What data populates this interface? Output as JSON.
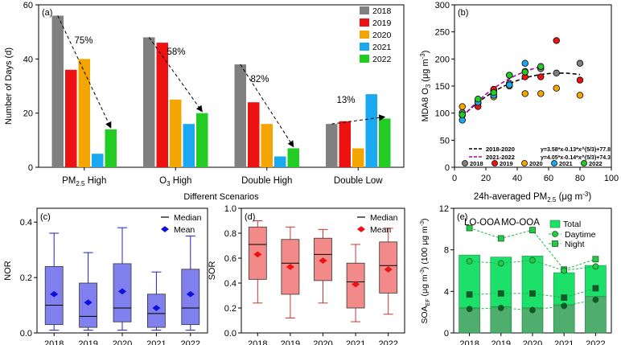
{
  "chart_data": [
    {
      "panel": "(a)",
      "type": "bar",
      "categories": [
        "PM2.5 High",
        "O3 High",
        "Double High",
        "Double Low"
      ],
      "category_labels": [
        {
          "main": "PM",
          "sub": "2.5",
          "rest": " High"
        },
        {
          "main": "O",
          "sub": "3",
          "rest": " High"
        },
        {
          "main": "Double High",
          "sub": "",
          "rest": ""
        },
        {
          "main": "Double Low",
          "sub": "",
          "rest": ""
        }
      ],
      "series": [
        {
          "name": "2018",
          "color": "#808080",
          "values": [
            56,
            48,
            38,
            16
          ]
        },
        {
          "name": "2019",
          "color": "#ee1111",
          "values": [
            36,
            46,
            24,
            17
          ]
        },
        {
          "name": "2020",
          "color": "#f5a500",
          "values": [
            40,
            25,
            16,
            7
          ]
        },
        {
          "name": "2021",
          "color": "#1aa9f0",
          "values": [
            5,
            16,
            4,
            27
          ]
        },
        {
          "name": "2022",
          "color": "#22cc22",
          "values": [
            14,
            20,
            7,
            18
          ]
        }
      ],
      "annotations": [
        "75%",
        "58%",
        "82%",
        "13%"
      ],
      "xlabel": "Different Scenarios",
      "ylabel": "Number of Days (d)",
      "ylim": [
        0,
        60
      ],
      "yticks": [
        0,
        20,
        40,
        60
      ],
      "legend": "top-right"
    },
    {
      "panel": "(b)",
      "type": "scatter",
      "xlabel_main": "24h-averaged PM",
      "xlabel_sub": "2.5",
      "xlabel_unit": " (μg m",
      "xlabel_sup": "-3",
      "xlabel_end": ")",
      "ylabel_main": "MDA8 O",
      "ylabel_sub": "3",
      "ylabel_unit": " (μg m",
      "ylabel_sup": "-3",
      "ylabel_end": ")",
      "xlim": [
        0,
        100
      ],
      "ylim": [
        0,
        300
      ],
      "xticks": [
        0,
        20,
        40,
        60,
        80,
        100
      ],
      "yticks": [
        0,
        50,
        100,
        150,
        200,
        250,
        300
      ],
      "series": [
        {
          "name": "2018",
          "color": "#808080",
          "points": [
            [
              5,
              101
            ],
            [
              15,
              118
            ],
            [
              25,
              141
            ],
            [
              35,
              155
            ],
            [
              45,
              177
            ],
            [
              55,
              182
            ],
            [
              65,
              174
            ],
            [
              80,
              192
            ]
          ]
        },
        {
          "name": "2019",
          "color": "#ee1111",
          "points": [
            [
              5,
              96
            ],
            [
              15,
              112
            ],
            [
              25,
              144
            ],
            [
              35,
              170
            ],
            [
              45,
              167
            ],
            [
              55,
              167
            ],
            [
              65,
              234
            ],
            [
              80,
              161
            ]
          ]
        },
        {
          "name": "2020",
          "color": "#f5a500",
          "points": [
            [
              5,
              112
            ],
            [
              15,
              123
            ],
            [
              25,
              130
            ],
            [
              35,
              150
            ],
            [
              45,
              136
            ],
            [
              55,
              136
            ],
            [
              65,
              146
            ],
            [
              80,
              133
            ]
          ]
        },
        {
          "name": "2021",
          "color": "#1aa9f0",
          "points": [
            [
              5,
              87
            ],
            [
              15,
              120
            ],
            [
              25,
              133
            ],
            [
              35,
              152
            ],
            [
              45,
              192
            ]
          ]
        },
        {
          "name": "2022",
          "color": "#22cc22",
          "points": [
            [
              5,
              97
            ],
            [
              15,
              126
            ],
            [
              25,
              138
            ],
            [
              35,
              170
            ],
            [
              45,
              176
            ],
            [
              55,
              186
            ]
          ]
        }
      ],
      "fits": [
        {
          "name": "2018-2020",
          "equation": "y=3.58*x-0.13*x^(5/3)+77.8",
          "color": "#000000",
          "a": 3.58,
          "b": 0.13,
          "c": 77.8,
          "range": [
            5,
            80
          ]
        },
        {
          "name": "2021-2022",
          "equation": "y=4.05*x-0.14*x^(5/3)+74.3",
          "color": "#b000b0",
          "a": 4.05,
          "b": 0.14,
          "c": 74.3,
          "range": [
            5,
            55
          ]
        }
      ]
    },
    {
      "panel": "(c)",
      "type": "box",
      "categories": [
        "2018",
        "2019",
        "2020",
        "2021",
        "2022"
      ],
      "ylabel": "NOR",
      "ylim": [
        0,
        0.45
      ],
      "yticks": [
        "0.0",
        "0.2",
        "0.4"
      ],
      "ytick_values": [
        0,
        0.2,
        0.4
      ],
      "fill": "#8080ee",
      "stroke": "#2020cc",
      "mean_color": "#1010dd",
      "legend": [
        "Median",
        "Mean"
      ],
      "boxes": [
        {
          "min": 0.01,
          "q1": 0.03,
          "median": 0.1,
          "q3": 0.24,
          "max": 0.36,
          "mean": 0.14
        },
        {
          "min": 0.01,
          "q1": 0.02,
          "median": 0.06,
          "q3": 0.18,
          "max": 0.29,
          "mean": 0.11
        },
        {
          "min": 0.01,
          "q1": 0.04,
          "median": 0.09,
          "q3": 0.25,
          "max": 0.38,
          "mean": 0.15
        },
        {
          "min": 0.01,
          "q1": 0.02,
          "median": 0.07,
          "q3": 0.14,
          "max": 0.22,
          "mean": 0.09
        },
        {
          "min": 0.01,
          "q1": 0.03,
          "median": 0.09,
          "q3": 0.23,
          "max": 0.35,
          "mean": 0.14
        }
      ]
    },
    {
      "panel": "(d)",
      "type": "box",
      "categories": [
        "2018",
        "2019",
        "2020",
        "2021",
        "2022"
      ],
      "ylabel": "SOR",
      "ylim": [
        0,
        1.0
      ],
      "yticks": [
        "0.0",
        "0.2",
        "0.4",
        "0.6",
        "0.8",
        "1.0"
      ],
      "ytick_values": [
        0,
        0.2,
        0.4,
        0.6,
        0.8,
        1.0
      ],
      "fill": "#f28a8a",
      "stroke": "#cc3333",
      "mean_color": "#ee1111",
      "legend": [
        "Median",
        "Mean"
      ],
      "boxes": [
        {
          "min": 0.24,
          "q1": 0.43,
          "median": 0.71,
          "q3": 0.85,
          "max": 0.9,
          "mean": 0.63
        },
        {
          "min": 0.12,
          "q1": 0.31,
          "median": 0.56,
          "q3": 0.75,
          "max": 0.85,
          "mean": 0.53
        },
        {
          "min": 0.24,
          "q1": 0.42,
          "median": 0.63,
          "q3": 0.76,
          "max": 0.83,
          "mean": 0.58
        },
        {
          "min": 0.09,
          "q1": 0.2,
          "median": 0.41,
          "q3": 0.56,
          "max": 0.71,
          "mean": 0.39
        },
        {
          "min": 0.15,
          "q1": 0.32,
          "median": 0.54,
          "q3": 0.73,
          "max": 0.84,
          "mean": 0.51
        }
      ]
    },
    {
      "panel": "(e)",
      "type": "bar",
      "categories": [
        "2018",
        "2019",
        "2020",
        "2021",
        "2022"
      ],
      "ylabel_main": "SOA",
      "ylabel_sub": "EF",
      "ylabel_unit": " (μg m",
      "ylabel_sup": "-3",
      "ylabel_mid": ") (100 μg m",
      "ylabel_sup2": "-3",
      "ylabel_end": ")",
      "ylim": [
        0,
        12
      ],
      "yticks": [
        0,
        4,
        8,
        12
      ],
      "text_lo": "LO-OOA",
      "text_mo": "MO-OOA",
      "legend": [
        "Total",
        "Daytime",
        "Night"
      ],
      "total": [
        7.5,
        7.3,
        7.4,
        5.8,
        6.5
      ],
      "lo_ooa": [
        2.4,
        2.5,
        2.4,
        2.7,
        3.5
      ],
      "daytime_total": [
        6.9,
        6.7,
        7.0,
        6.0,
        6.4
      ],
      "daytime_lo": [
        2.3,
        2.4,
        2.2,
        2.6,
        3.2
      ],
      "night_total": [
        10.1,
        9.1,
        9.9,
        6.1,
        7.1
      ],
      "night_mid": [
        3.7,
        3.8,
        3.8,
        3.4,
        4.3
      ]
    }
  ]
}
